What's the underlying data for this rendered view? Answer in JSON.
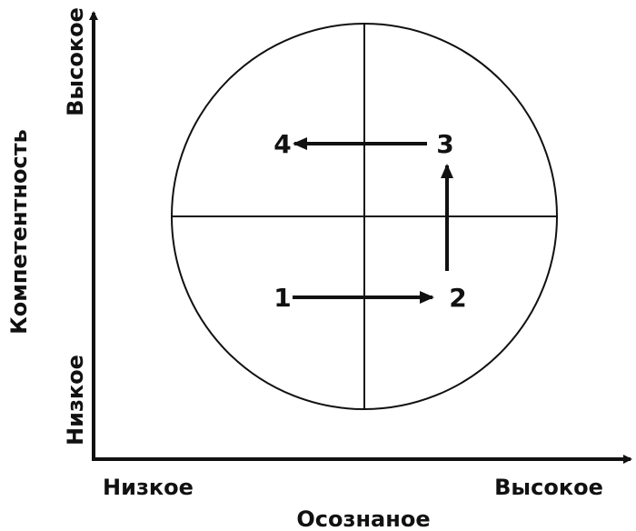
{
  "axes": {
    "y_title": "Компетентность",
    "y_high": "Высокое",
    "y_low": "Низкое",
    "x_title": "Осознаное",
    "x_low": "Низкое",
    "x_high": "Высокое"
  },
  "stages": [
    {
      "label": "1"
    },
    {
      "label": "2"
    },
    {
      "label": "3"
    },
    {
      "label": "4"
    }
  ]
}
